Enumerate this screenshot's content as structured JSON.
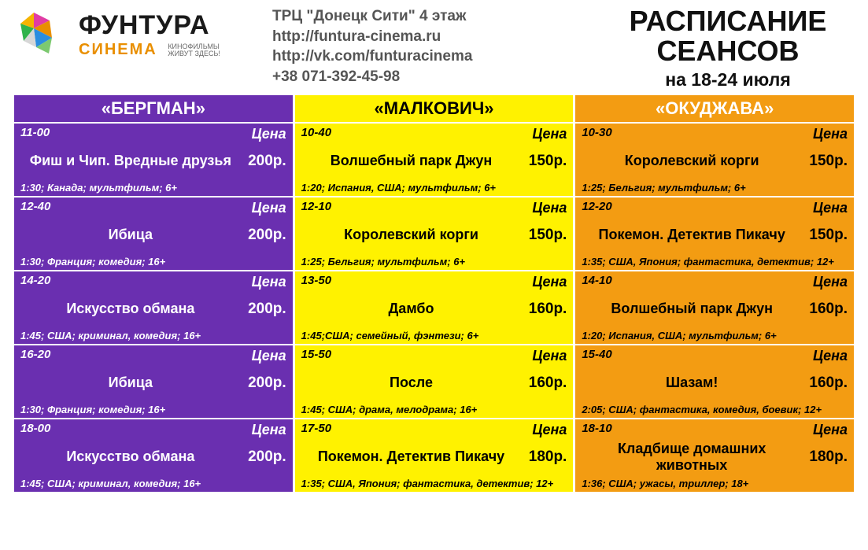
{
  "logo": {
    "brand1": "ФУНТУРА",
    "brand2": "СИНЕМА",
    "tagline1": "КИНОФИЛЬМЫ",
    "tagline2": "ЖИВУТ ЗДЕСЬ!"
  },
  "address": {
    "l1": "ТРЦ \"Донецк Сити\" 4 этаж",
    "l2": "http://funtura-cinema.ru",
    "l3": "http://vk.com/funturacinema",
    "l4": "+38 071-392-45-98"
  },
  "title": {
    "l1": "РАСПИСАНИЕ",
    "l2": "СЕАНСОВ",
    "sub": "на 18-24 июля"
  },
  "columns": [
    {
      "header": "«БЕРГМАН»",
      "theme": "purple",
      "header_bg": "#6a2fb0",
      "cell_bg": "#6a2fb0",
      "text_color": "#ffffff",
      "sessions": [
        {
          "time": "11-00",
          "price_label": "Цена",
          "movie": "Фиш и Чип. Вредные друзья",
          "price": "200р.",
          "meta": "1:30; Канада; мультфильм; 6+"
        },
        {
          "time": "12-40",
          "price_label": "Цена",
          "movie": "Ибица",
          "price": "200р.",
          "meta": "1:30; Франция; комедия; 16+"
        },
        {
          "time": "14-20",
          "price_label": "Цена",
          "movie": "Искусство обмана",
          "price": "200р.",
          "meta": "1:45; США; криминал, комедия; 16+"
        },
        {
          "time": "16-20",
          "price_label": "Цена",
          "movie": "Ибица",
          "price": "200р.",
          "meta": "1:30; Франция; комедия; 16+"
        },
        {
          "time": "18-00",
          "price_label": "Цена",
          "movie": "Искусство обмана",
          "price": "200р.",
          "meta": "1:45; США; криминал, комедия; 16+"
        }
      ]
    },
    {
      "header": "«МАЛКОВИЧ»",
      "theme": "yellow",
      "header_bg": "#fff200",
      "cell_bg": "#fff200",
      "text_color": "#000000",
      "sessions": [
        {
          "time": "10-40",
          "price_label": "Цена",
          "movie": "Волшебный парк Джун",
          "price": "150р.",
          "meta": "1:20; Испания, США; мультфильм; 6+"
        },
        {
          "time": "12-10",
          "price_label": "Цена",
          "movie": "Королевский корги",
          "price": "150р.",
          "meta": "1:25; Бельгия; мультфильм; 6+"
        },
        {
          "time": "13-50",
          "price_label": "Цена",
          "movie": "Дамбо",
          "price": "160р.",
          "meta": "1:45;США; семейный, фэнтези; 6+"
        },
        {
          "time": "15-50",
          "price_label": "Цена",
          "movie": "После",
          "price": "160р.",
          "meta": "1:45; США; драма, мелодрама; 16+"
        },
        {
          "time": "17-50",
          "price_label": "Цена",
          "movie": "Покемон. Детектив Пикачу",
          "price": "180р.",
          "meta": "1:35; США, Япония; фантастика, детектив; 12+"
        }
      ]
    },
    {
      "header": "«ОКУДЖАВА»",
      "theme": "orange",
      "header_bg": "#f39c12",
      "cell_bg": "#f39c12",
      "text_color": "#000000",
      "sessions": [
        {
          "time": "10-30",
          "price_label": "Цена",
          "movie": "Королевский корги",
          "price": "150р.",
          "meta": "1:25; Бельгия; мультфильм; 6+"
        },
        {
          "time": "12-20",
          "price_label": "Цена",
          "movie": "Покемон. Детектив Пикачу",
          "price": "150р.",
          "meta": "1:35; США, Япония; фантастика, детектив; 12+"
        },
        {
          "time": "14-10",
          "price_label": "Цена",
          "movie": "Волшебный парк Джун",
          "price": "160р.",
          "meta": "1:20; Испания, США; мультфильм; 6+"
        },
        {
          "time": "15-40",
          "price_label": "Цена",
          "movie": "Шазам!",
          "price": "160р.",
          "meta": "2:05; США; фантастика, комедия, боевик; 12+"
        },
        {
          "time": "18-10",
          "price_label": "Цена",
          "movie": "Кладбище домашних животных",
          "price": "180р.",
          "meta": "1:36; США; ужасы, триллер; 18+"
        }
      ]
    }
  ]
}
